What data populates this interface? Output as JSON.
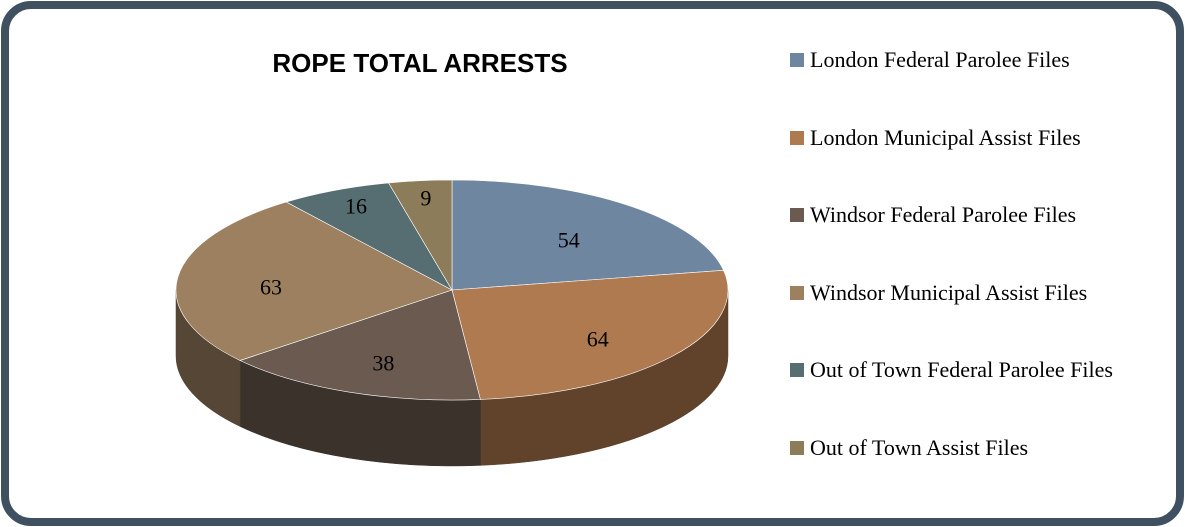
{
  "chart_data": {
    "type": "pie3d",
    "title": "ROPE TOTAL ARRESTS",
    "categories": [
      "London Federal Parolee Files",
      "London Municipal Assist Files",
      "Windsor Federal Parolee Files",
      "Windsor Municipal Assist Files",
      "Out of Town Federal Parolee Files",
      "Out of Town Assist Files"
    ],
    "values": [
      54,
      64,
      38,
      63,
      16,
      9
    ],
    "colors": [
      "#6f86a0",
      "#b07a50",
      "#6b5a50",
      "#9c8060",
      "#566e72",
      "#8c7c5a"
    ],
    "legend": "right"
  }
}
